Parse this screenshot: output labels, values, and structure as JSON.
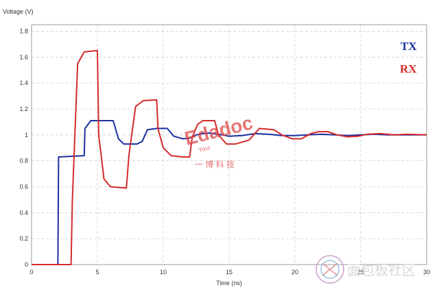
{
  "chart_data": {
    "type": "line",
    "title": "",
    "ylabel": "Voltage (V)",
    "xlabel": "Time (ns)",
    "xlim": [
      0,
      30
    ],
    "ylim": [
      0,
      1.85
    ],
    "xticks": [
      0,
      5,
      10,
      15,
      20,
      25,
      30
    ],
    "yticks": [
      0,
      0.2,
      0.4,
      0.6,
      0.8,
      1,
      1.2,
      1.4,
      1.6,
      1.8
    ],
    "ytick_labels": [
      "0",
      "0.2",
      "0.4",
      "0.6",
      "0.8",
      "1",
      "1.2",
      "1.4",
      "1.6",
      "1.8"
    ],
    "grid": true,
    "legend_position": "top-right",
    "series": [
      {
        "name": "TX",
        "color": "#1a2fa0",
        "x": [
          0,
          2.0,
          2.05,
          4.0,
          4.05,
          4.5,
          5.0,
          6.2,
          6.6,
          7.0,
          8.0,
          8.4,
          8.8,
          9.5,
          10.3,
          10.8,
          11.5,
          12.0,
          12.5,
          13.0,
          13.5,
          14.2,
          15.0,
          16.0,
          17.0,
          18.0,
          19.0,
          20.0,
          21.0,
          22.0,
          23.0,
          24.0,
          25.0,
          26.0,
          27.0,
          28.0,
          29.0,
          30.0
        ],
        "y": [
          0,
          0,
          0.83,
          0.84,
          1.05,
          1.11,
          1.11,
          1.11,
          0.97,
          0.93,
          0.93,
          0.95,
          1.04,
          1.05,
          1.05,
          0.99,
          0.97,
          0.975,
          1.0,
          1.01,
          1.015,
          1.005,
          0.99,
          0.995,
          1.01,
          1.005,
          0.995,
          0.995,
          1.0,
          1.005,
          1.0,
          0.995,
          1.0,
          1.005,
          1.0,
          1.0,
          1.0,
          1.0
        ]
      },
      {
        "name": "RX",
        "color": "#d42a2a",
        "x": [
          0,
          3.0,
          3.1,
          3.5,
          4.0,
          5.0,
          5.1,
          5.5,
          6.0,
          7.2,
          7.4,
          7.9,
          8.5,
          9.5,
          9.6,
          10.0,
          10.6,
          11.5,
          12.0,
          12.2,
          12.6,
          13.0,
          13.9,
          14.2,
          14.8,
          15.5,
          16.5,
          17.3,
          17.8,
          18.4,
          19.0,
          19.8,
          20.5,
          21.2,
          21.8,
          22.5,
          23.2,
          24.0,
          24.8,
          25.5,
          26.5,
          27.5,
          28.5,
          30.0
        ],
        "y": [
          0,
          0,
          0.5,
          1.55,
          1.64,
          1.65,
          1.0,
          0.66,
          0.6,
          0.59,
          0.85,
          1.22,
          1.265,
          1.27,
          1.05,
          0.9,
          0.84,
          0.83,
          0.83,
          0.98,
          1.08,
          1.11,
          1.11,
          1.0,
          0.93,
          0.93,
          0.96,
          1.05,
          1.045,
          1.04,
          1.0,
          0.97,
          0.97,
          1.01,
          1.025,
          1.025,
          1.0,
          0.985,
          0.99,
          1.005,
          1.01,
          1.0,
          1.005,
          1.0
        ]
      }
    ]
  },
  "watermark": {
    "brand": "Edadoc",
    "tagline": "Your",
    "chinese": "一  博  科  技",
    "site": "面包板社区"
  }
}
